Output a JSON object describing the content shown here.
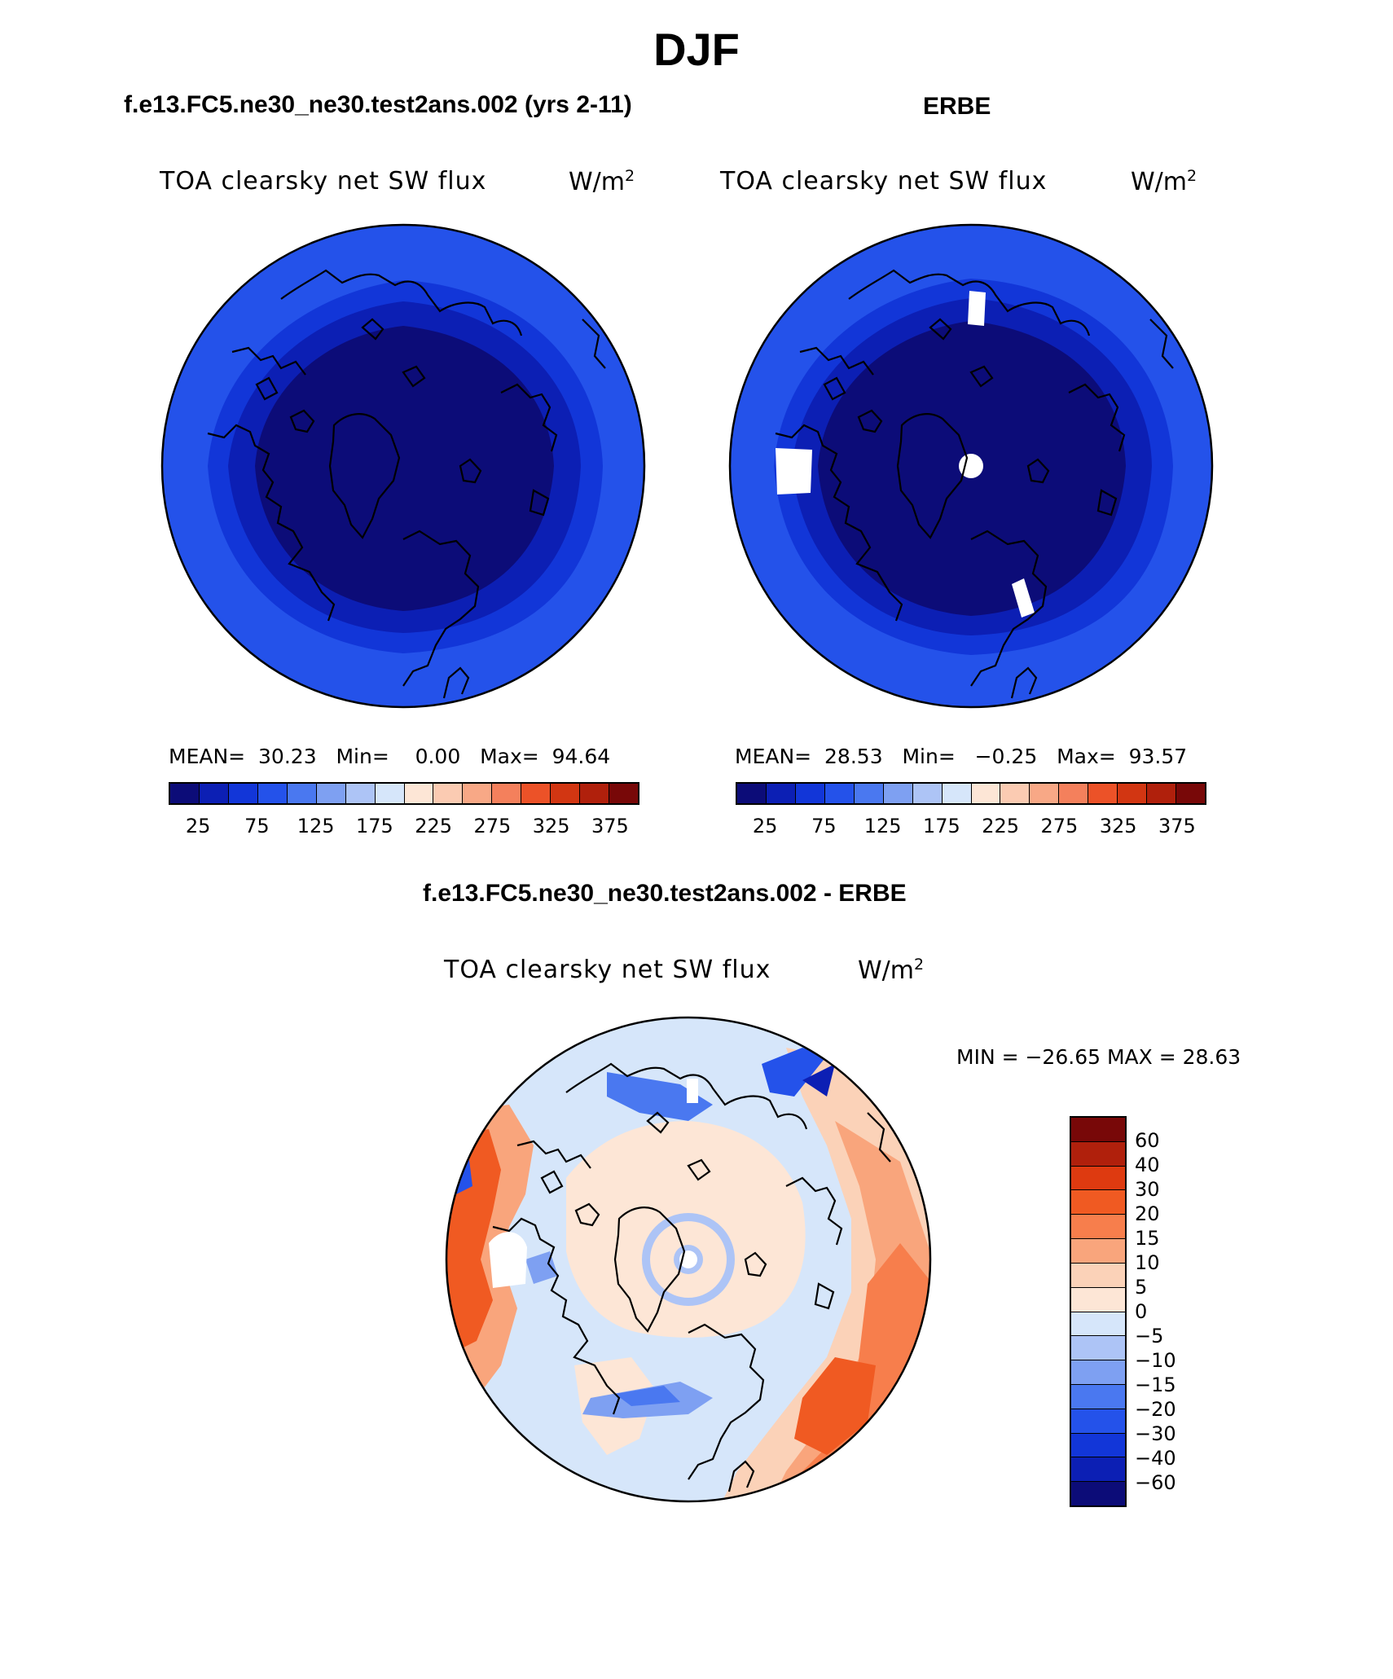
{
  "figure": {
    "season": "DJF",
    "left_title": "f.e13.FC5.ne30_ne30.test2ans.002 (yrs 2-11)",
    "right_title": "ERBE",
    "diff_title": "f.e13.FC5.ne30_ne30.test2ans.002 - ERBE"
  },
  "panels": {
    "model": {
      "variable": "TOA clearsky net SW flux",
      "units_base": "W/m",
      "units_exp": "2",
      "mean_label": "MEAN=",
      "mean": "30.23",
      "min_label": "Min=",
      "min": "0.00",
      "max_label": "Max=",
      "max": "94.64"
    },
    "obs": {
      "variable": "TOA clearsky net SW flux",
      "units_base": "W/m",
      "units_exp": "2",
      "mean_label": "MEAN=",
      "mean": "28.53",
      "min_label": "Min=",
      "min": "−0.25",
      "max_label": "Max=",
      "max": "93.57"
    },
    "diff": {
      "variable": "TOA clearsky net SW flux",
      "units_base": "W/m",
      "units_exp": "2",
      "minmax_text": "MIN = −26.65 MAX =   28.63"
    }
  },
  "colorbar_abs": {
    "colors": [
      "#0c0c78",
      "#0c1fb4",
      "#1236d8",
      "#2452ea",
      "#4a78f0",
      "#7ea0f2",
      "#adc4f6",
      "#d6e6fa",
      "#fde6d6",
      "#fbcbb2",
      "#f8a886",
      "#f4805c",
      "#ec5228",
      "#d23612",
      "#b0200c",
      "#780808"
    ],
    "tick_labels": [
      "25",
      "75",
      "125",
      "175",
      "225",
      "275",
      "325",
      "375"
    ]
  },
  "colorbar_diff": {
    "colors": [
      "#780808",
      "#b0200c",
      "#de3a10",
      "#f05a22",
      "#f77e4c",
      "#f9a57c",
      "#fbd2b8",
      "#fde6d6",
      "#d6e6fa",
      "#adc4f6",
      "#7ea0f2",
      "#4a78f0",
      "#2452ea",
      "#1236d8",
      "#0c1fb4",
      "#0c0c78"
    ],
    "tick_labels": [
      "60",
      "40",
      "30",
      "20",
      "15",
      "10",
      "5",
      "0",
      "−5",
      "−10",
      "−15",
      "−20",
      "−30",
      "−40",
      "−60"
    ]
  }
}
